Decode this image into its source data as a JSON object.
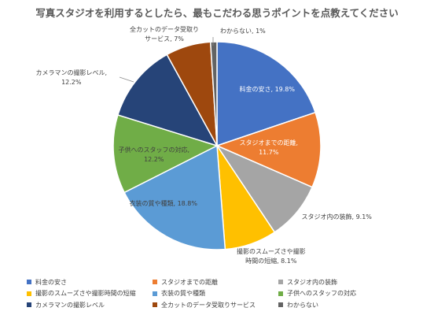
{
  "chart_data": {
    "type": "pie",
    "title": "写真スタジオを利用するとしたら、最もこだわる思うポイントを点教えてください",
    "slices": [
      {
        "name": "料金の安さ",
        "value": 19.8,
        "label": "料金の安さ, 19.8%",
        "color": "#4472C4"
      },
      {
        "name": "スタジオまでの距離",
        "value": 11.7,
        "label": "スタジオまでの距離,\n11.7%",
        "color": "#ED7D31"
      },
      {
        "name": "スタジオ内の装飾",
        "value": 9.1,
        "label": "スタジオ内の装飾, 9.1%",
        "color": "#A5A5A5"
      },
      {
        "name": "撮影のスムーズさや撮影時間の短縮",
        "value": 8.1,
        "label": "撮影のスムーズさや撮影\n時間の短縮, 8.1%",
        "color": "#FFC000"
      },
      {
        "name": "衣装の質や種類",
        "value": 18.8,
        "label": "衣装の質や種類, 18.8%",
        "color": "#5B9BD5"
      },
      {
        "name": "子供へのスタッフの対応",
        "value": 12.2,
        "label": "子供へのスタッフの対応,\n12.2%",
        "color": "#70AD47"
      },
      {
        "name": "カメラマンの撮影レベル",
        "value": 12.2,
        "label": "カメラマンの撮影レベル,\n12.2%",
        "color": "#264478"
      },
      {
        "name": "全カットのデータ受取りサービス",
        "value": 7,
        "label": "全カットのデータ受取り\nサービス, 7%",
        "color": "#9E480E"
      },
      {
        "name": "わからない",
        "value": 1,
        "label": "わからない, 1%",
        "color": "#636363"
      }
    ],
    "legend_position": "bottom"
  }
}
